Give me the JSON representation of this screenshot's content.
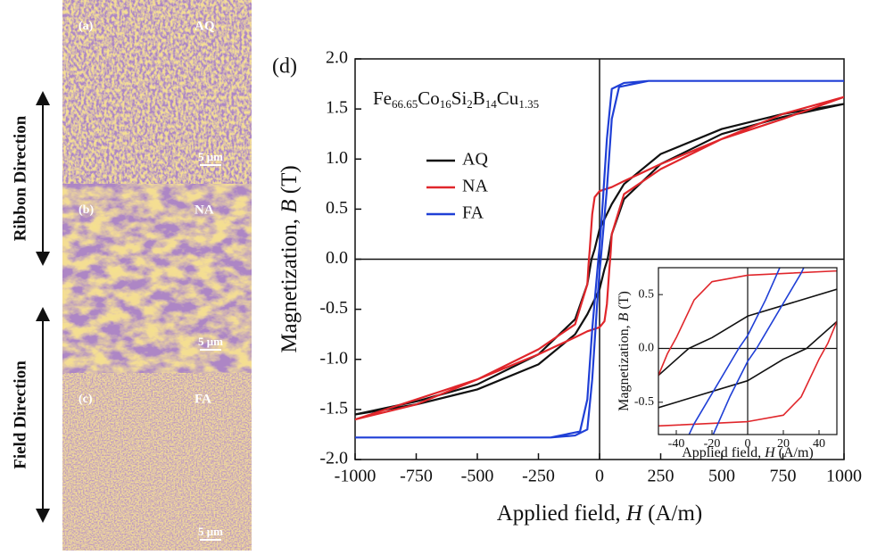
{
  "panels": [
    {
      "label": "(a)",
      "name": "AQ",
      "scale": "5 μm"
    },
    {
      "label": "(b)",
      "name": "NA",
      "scale": "5 μm"
    },
    {
      "label": "(c)",
      "name": "FA",
      "scale": "5 μm"
    }
  ],
  "directions": [
    "Ribbon Direction",
    "Field Direction"
  ],
  "chart_data": {
    "type": "line",
    "label": "(d)",
    "formula": [
      {
        "el": "Fe",
        "sub": "66.65"
      },
      {
        "el": "Co",
        "sub": "16"
      },
      {
        "el": "Si",
        "sub": "2"
      },
      {
        "el": "B",
        "sub": "14"
      },
      {
        "el": "Cu",
        "sub": "1.35"
      }
    ],
    "xlabel": [
      "Applied field, ",
      "H",
      " (A/m)"
    ],
    "ylabel": [
      "Magnetization, ",
      "B",
      " (T)"
    ],
    "xlim": [
      -1000,
      1000
    ],
    "xticks": [
      -1000,
      -750,
      -500,
      -250,
      0,
      250,
      500,
      750,
      1000
    ],
    "ylim": [
      -2,
      2
    ],
    "yticks": [
      {
        "value": -2,
        "label": "-2.0"
      },
      -1.5,
      {
        "value": -1,
        "label": "-1.0"
      },
      -0.5,
      {
        "value": 0,
        "label": "0.0"
      },
      0.5,
      {
        "value": 1,
        "label": "1.0"
      },
      1.5,
      {
        "value": 2,
        "label": "2.0"
      }
    ],
    "series": [
      {
        "name": "AQ",
        "color": "#111111",
        "x": [
          1000,
          750,
          500,
          250,
          100,
          50,
          0,
          -20,
          -33,
          -50,
          -100,
          -250,
          -500,
          -750,
          -1000,
          -750,
          -500,
          -250,
          -100,
          -50,
          0,
          20,
          33,
          50,
          100,
          250,
          500,
          750,
          1000
        ],
        "values": [
          1.55,
          1.45,
          1.3,
          1.05,
          0.75,
          0.55,
          0.3,
          0.1,
          0,
          -0.25,
          -0.6,
          -0.95,
          -1.25,
          -1.42,
          -1.55,
          -1.45,
          -1.3,
          -1.05,
          -0.75,
          -0.55,
          -0.3,
          -0.1,
          0,
          0.25,
          0.6,
          0.95,
          1.25,
          1.42,
          1.55
        ]
      },
      {
        "name": "NA",
        "color": "#e0262b",
        "x": [
          1000,
          750,
          500,
          250,
          100,
          50,
          0,
          -20,
          -30,
          -40,
          -45,
          -50,
          -100,
          -250,
          -500,
          -750,
          -1000,
          -750,
          -500,
          -250,
          -100,
          -50,
          0,
          20,
          30,
          40,
          45,
          50,
          100,
          250,
          500,
          750,
          1000
        ],
        "values": [
          1.62,
          1.45,
          1.2,
          0.95,
          0.78,
          0.72,
          0.68,
          0.62,
          0.45,
          0.1,
          -0.05,
          -0.25,
          -0.65,
          -0.9,
          -1.2,
          -1.4,
          -1.6,
          -1.45,
          -1.2,
          -0.95,
          -0.78,
          -0.72,
          -0.68,
          -0.62,
          -0.45,
          -0.1,
          0.05,
          0.25,
          0.65,
          0.9,
          1.2,
          1.4,
          1.62
        ]
      },
      {
        "name": "FA",
        "color": "#1f3fd6",
        "x": [
          1000,
          200,
          100,
          50,
          30,
          10,
          0,
          -5,
          -30,
          -50,
          -80,
          -200,
          -1000,
          -200,
          -100,
          -50,
          -30,
          -10,
          0,
          5,
          30,
          50,
          80,
          200,
          1000
        ],
        "values": [
          1.78,
          1.78,
          1.76,
          1.7,
          1.2,
          0.45,
          0.12,
          0,
          -0.7,
          -1.4,
          -1.72,
          -1.78,
          -1.78,
          -1.78,
          -1.76,
          -1.7,
          -1.2,
          -0.45,
          -0.12,
          0,
          0.7,
          1.4,
          1.72,
          1.78,
          1.78
        ]
      }
    ],
    "inset": {
      "xlim": [
        -50,
        50
      ],
      "xticks": [
        -40,
        -20,
        0,
        20,
        40
      ],
      "ylim": [
        -0.8,
        0.75
      ],
      "yticks": [
        -0.5,
        {
          "value": 0,
          "label": "0.0"
        },
        0.5
      ],
      "xlabel": [
        "Applied field, ",
        "H",
        " (A/m)"
      ],
      "ylabel": [
        "Magnetization, ",
        "B",
        " (T)"
      ]
    }
  }
}
